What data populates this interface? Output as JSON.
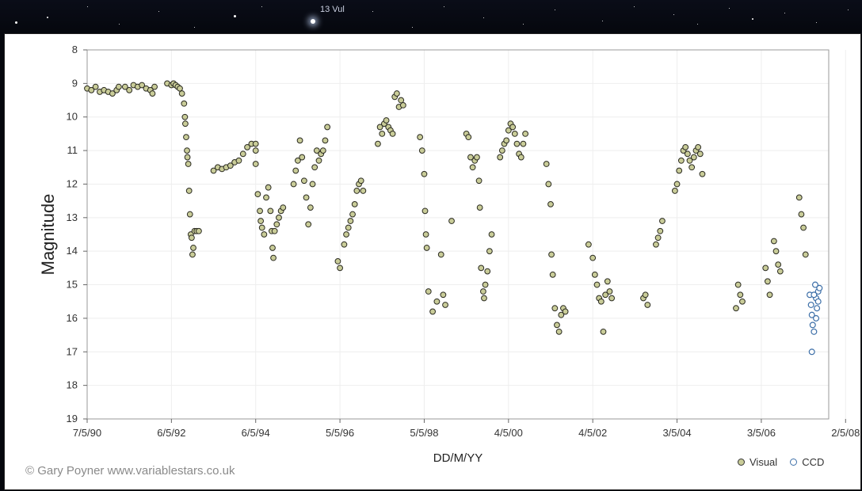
{
  "background": {
    "star_label": "13 Vul"
  },
  "credit": "© Gary Poyner www.variablestars.co.uk",
  "chart_data": {
    "type": "scatter",
    "title": "",
    "xlabel": "DD/M/YY",
    "ylabel": "Magnitude",
    "ylim": [
      8,
      19
    ],
    "y_inverted": true,
    "xlim": [
      0,
      17.6
    ],
    "x_unit": "years since 7/5/90",
    "x_ticks": [
      {
        "v": 0,
        "label": "7/5/90"
      },
      {
        "v": 2,
        "label": "6/5/92"
      },
      {
        "v": 4,
        "label": "6/5/94"
      },
      {
        "v": 6,
        "label": "5/5/96"
      },
      {
        "v": 8,
        "label": "5/5/98"
      },
      {
        "v": 10,
        "label": "4/5/00"
      },
      {
        "v": 12,
        "label": "4/5/02"
      },
      {
        "v": 14,
        "label": "3/5/04"
      },
      {
        "v": 16,
        "label": "3/5/06"
      },
      {
        "v": 18,
        "label": "2/5/08"
      }
    ],
    "y_ticks": [
      8,
      9,
      10,
      11,
      12,
      13,
      14,
      15,
      16,
      17,
      18,
      19
    ],
    "grid": true,
    "legend_position": "bottom-right",
    "colors": {
      "visual_fill": "#c9cc98",
      "visual_edge": "#2b2b22",
      "ccd_edge": "#3d6fa8",
      "ccd_fill": "#ffffff"
    },
    "series": [
      {
        "name": "Visual",
        "points": [
          [
            0.0,
            9.15
          ],
          [
            0.1,
            9.2
          ],
          [
            0.2,
            9.1
          ],
          [
            0.3,
            9.25
          ],
          [
            0.4,
            9.2
          ],
          [
            0.5,
            9.25
          ],
          [
            0.6,
            9.3
          ],
          [
            0.7,
            9.2
          ],
          [
            0.75,
            9.1
          ],
          [
            0.9,
            9.1
          ],
          [
            1.0,
            9.2
          ],
          [
            1.1,
            9.05
          ],
          [
            1.2,
            9.1
          ],
          [
            1.3,
            9.05
          ],
          [
            1.4,
            9.15
          ],
          [
            1.5,
            9.2
          ],
          [
            1.55,
            9.3
          ],
          [
            1.6,
            9.1
          ],
          [
            1.9,
            9.0
          ],
          [
            2.0,
            9.05
          ],
          [
            2.05,
            9.0
          ],
          [
            2.1,
            9.05
          ],
          [
            2.15,
            9.1
          ],
          [
            2.2,
            9.15
          ],
          [
            2.25,
            9.3
          ],
          [
            2.3,
            9.6
          ],
          [
            2.32,
            10.0
          ],
          [
            2.33,
            10.2
          ],
          [
            2.35,
            10.6
          ],
          [
            2.37,
            11.0
          ],
          [
            2.38,
            11.2
          ],
          [
            2.4,
            11.4
          ],
          [
            2.42,
            12.2
          ],
          [
            2.44,
            12.9
          ],
          [
            2.46,
            13.5
          ],
          [
            2.48,
            13.6
          ],
          [
            2.5,
            14.1
          ],
          [
            2.52,
            13.9
          ],
          [
            2.55,
            13.4
          ],
          [
            2.6,
            13.4
          ],
          [
            2.65,
            13.4
          ],
          [
            3.0,
            11.6
          ],
          [
            3.1,
            11.5
          ],
          [
            3.2,
            11.55
          ],
          [
            3.3,
            11.5
          ],
          [
            3.4,
            11.45
          ],
          [
            3.5,
            11.35
          ],
          [
            3.6,
            11.3
          ],
          [
            3.7,
            11.1
          ],
          [
            3.8,
            10.9
          ],
          [
            3.9,
            10.8
          ],
          [
            4.0,
            10.8
          ],
          [
            4.0,
            11.0
          ],
          [
            4.0,
            11.4
          ],
          [
            4.05,
            12.3
          ],
          [
            4.1,
            12.8
          ],
          [
            4.12,
            13.1
          ],
          [
            4.15,
            13.3
          ],
          [
            4.2,
            13.5
          ],
          [
            4.25,
            12.4
          ],
          [
            4.3,
            12.1
          ],
          [
            4.35,
            12.8
          ],
          [
            4.38,
            13.4
          ],
          [
            4.4,
            13.9
          ],
          [
            4.42,
            14.2
          ],
          [
            4.45,
            13.4
          ],
          [
            4.5,
            13.2
          ],
          [
            4.55,
            13.0
          ],
          [
            4.6,
            12.8
          ],
          [
            4.65,
            12.7
          ],
          [
            4.9,
            12.0
          ],
          [
            4.95,
            11.6
          ],
          [
            5.0,
            11.3
          ],
          [
            5.05,
            10.7
          ],
          [
            5.1,
            11.2
          ],
          [
            5.15,
            11.9
          ],
          [
            5.2,
            12.4
          ],
          [
            5.25,
            13.2
          ],
          [
            5.3,
            12.7
          ],
          [
            5.35,
            12.0
          ],
          [
            5.4,
            11.5
          ],
          [
            5.45,
            11.0
          ],
          [
            5.5,
            11.3
          ],
          [
            5.55,
            11.1
          ],
          [
            5.6,
            11.0
          ],
          [
            5.65,
            10.7
          ],
          [
            5.7,
            10.3
          ],
          [
            5.95,
            14.3
          ],
          [
            6.0,
            14.5
          ],
          [
            6.1,
            13.8
          ],
          [
            6.15,
            13.5
          ],
          [
            6.2,
            13.3
          ],
          [
            6.25,
            13.1
          ],
          [
            6.3,
            12.9
          ],
          [
            6.35,
            12.6
          ],
          [
            6.4,
            12.2
          ],
          [
            6.45,
            12.0
          ],
          [
            6.5,
            11.9
          ],
          [
            6.55,
            12.2
          ],
          [
            6.9,
            10.8
          ],
          [
            6.95,
            10.3
          ],
          [
            7.0,
            10.5
          ],
          [
            7.05,
            10.2
          ],
          [
            7.1,
            10.1
          ],
          [
            7.15,
            10.3
          ],
          [
            7.2,
            10.4
          ],
          [
            7.25,
            10.5
          ],
          [
            7.3,
            9.4
          ],
          [
            7.35,
            9.3
          ],
          [
            7.4,
            9.7
          ],
          [
            7.45,
            9.5
          ],
          [
            7.5,
            9.65
          ],
          [
            7.9,
            10.6
          ],
          [
            7.95,
            11.0
          ],
          [
            8.0,
            11.7
          ],
          [
            8.02,
            12.8
          ],
          [
            8.04,
            13.5
          ],
          [
            8.06,
            13.9
          ],
          [
            8.1,
            15.2
          ],
          [
            8.2,
            15.8
          ],
          [
            8.3,
            15.5
          ],
          [
            8.4,
            14.1
          ],
          [
            8.45,
            15.3
          ],
          [
            8.5,
            15.6
          ],
          [
            8.65,
            13.1
          ],
          [
            9.0,
            10.5
          ],
          [
            9.05,
            10.6
          ],
          [
            9.1,
            11.2
          ],
          [
            9.15,
            11.5
          ],
          [
            9.2,
            11.3
          ],
          [
            9.25,
            11.2
          ],
          [
            9.3,
            11.9
          ],
          [
            9.32,
            12.7
          ],
          [
            9.35,
            14.5
          ],
          [
            9.4,
            15.2
          ],
          [
            9.42,
            15.4
          ],
          [
            9.45,
            15.0
          ],
          [
            9.5,
            14.6
          ],
          [
            9.55,
            14.0
          ],
          [
            9.6,
            13.5
          ],
          [
            9.8,
            11.2
          ],
          [
            9.85,
            11.0
          ],
          [
            9.9,
            10.8
          ],
          [
            9.95,
            10.7
          ],
          [
            10.0,
            10.4
          ],
          [
            10.05,
            10.2
          ],
          [
            10.1,
            10.3
          ],
          [
            10.15,
            10.5
          ],
          [
            10.2,
            10.8
          ],
          [
            10.25,
            11.1
          ],
          [
            10.3,
            11.2
          ],
          [
            10.35,
            10.8
          ],
          [
            10.4,
            10.5
          ],
          [
            10.9,
            11.4
          ],
          [
            10.95,
            12.0
          ],
          [
            11.0,
            12.6
          ],
          [
            11.02,
            14.1
          ],
          [
            11.05,
            14.7
          ],
          [
            11.1,
            15.7
          ],
          [
            11.15,
            16.2
          ],
          [
            11.2,
            16.4
          ],
          [
            11.25,
            15.9
          ],
          [
            11.3,
            15.7
          ],
          [
            11.35,
            15.8
          ],
          [
            11.9,
            13.8
          ],
          [
            12.0,
            14.2
          ],
          [
            12.05,
            14.7
          ],
          [
            12.1,
            15.0
          ],
          [
            12.15,
            15.4
          ],
          [
            12.2,
            15.5
          ],
          [
            12.25,
            16.4
          ],
          [
            12.3,
            15.3
          ],
          [
            12.35,
            14.9
          ],
          [
            12.4,
            15.2
          ],
          [
            12.45,
            15.4
          ],
          [
            13.2,
            15.4
          ],
          [
            13.25,
            15.3
          ],
          [
            13.3,
            15.6
          ],
          [
            13.5,
            13.8
          ],
          [
            13.55,
            13.6
          ],
          [
            13.6,
            13.4
          ],
          [
            13.65,
            13.1
          ],
          [
            13.95,
            12.2
          ],
          [
            14.0,
            12.0
          ],
          [
            14.05,
            11.6
          ],
          [
            14.1,
            11.3
          ],
          [
            14.15,
            11.0
          ],
          [
            14.2,
            10.9
          ],
          [
            14.25,
            11.1
          ],
          [
            14.3,
            11.3
          ],
          [
            14.35,
            11.5
          ],
          [
            14.4,
            11.2
          ],
          [
            14.45,
            11.0
          ],
          [
            14.5,
            10.9
          ],
          [
            14.55,
            11.1
          ],
          [
            14.6,
            11.7
          ],
          [
            15.4,
            15.7
          ],
          [
            15.45,
            15.0
          ],
          [
            15.5,
            15.3
          ],
          [
            15.55,
            15.5
          ],
          [
            16.1,
            14.5
          ],
          [
            16.15,
            14.9
          ],
          [
            16.2,
            15.3
          ],
          [
            16.3,
            13.7
          ],
          [
            16.35,
            14.0
          ],
          [
            16.4,
            14.4
          ],
          [
            16.45,
            14.6
          ],
          [
            16.9,
            12.4
          ],
          [
            16.95,
            12.9
          ],
          [
            17.0,
            13.3
          ],
          [
            17.05,
            14.1
          ]
        ]
      },
      {
        "name": "CCD",
        "points": [
          [
            17.15,
            15.3
          ],
          [
            17.18,
            15.6
          ],
          [
            17.2,
            15.9
          ],
          [
            17.22,
            16.2
          ],
          [
            17.25,
            16.4
          ],
          [
            17.2,
            17.0
          ],
          [
            17.28,
            15.0
          ],
          [
            17.3,
            15.4
          ],
          [
            17.32,
            15.7
          ],
          [
            17.35,
            15.2
          ],
          [
            17.38,
            15.1
          ],
          [
            17.25,
            15.3
          ],
          [
            17.3,
            16.0
          ],
          [
            17.35,
            15.5
          ]
        ]
      }
    ]
  }
}
